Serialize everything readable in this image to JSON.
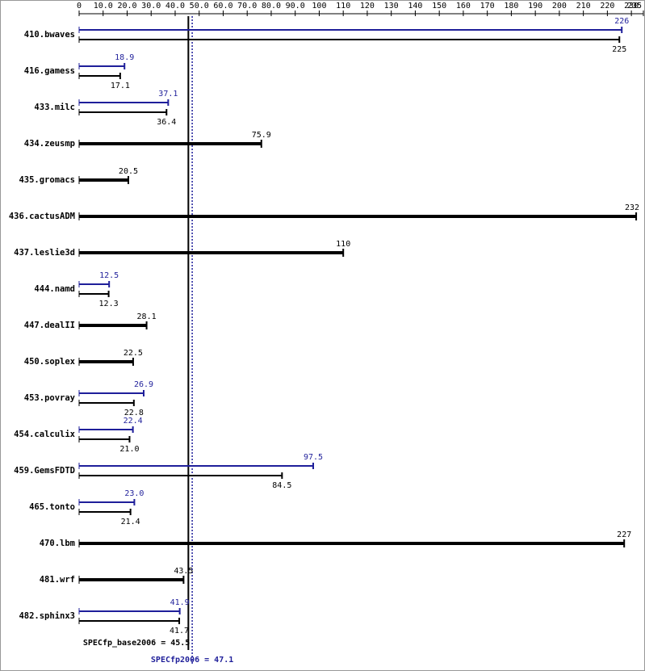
{
  "chart_data": {
    "type": "bar",
    "orientation": "horizontal",
    "categories": [
      "410.bwaves",
      "416.gamess",
      "433.milc",
      "434.zeusmp",
      "435.gromacs",
      "436.cactusADM",
      "437.leslie3d",
      "444.namd",
      "447.dealII",
      "450.soplex",
      "453.povray",
      "454.calculix",
      "459.GemsFDTD",
      "465.tonto",
      "470.lbm",
      "481.wrf",
      "482.sphinx3"
    ],
    "series": [
      {
        "color": "#1f1f9a",
        "values": [
          226,
          18.9,
          37.1,
          null,
          null,
          null,
          null,
          12.5,
          null,
          null,
          26.9,
          22.4,
          97.5,
          23.0,
          null,
          null,
          41.9
        ],
        "value_labels": [
          null,
          null,
          null,
          null,
          null,
          null,
          null,
          null,
          null,
          null,
          null,
          null,
          null,
          "23.0",
          null,
          null,
          null
        ]
      },
      {
        "color": "#000000",
        "values": [
          225,
          17.1,
          36.4,
          75.9,
          20.5,
          232,
          110,
          12.3,
          28.1,
          22.5,
          22.8,
          21.0,
          84.5,
          21.4,
          227,
          43.5,
          41.7
        ],
        "value_labels": [
          null,
          null,
          null,
          null,
          null,
          null,
          null,
          null,
          null,
          null,
          null,
          "21.0",
          null,
          null,
          null,
          null,
          null
        ]
      }
    ],
    "xlim": [
      0,
      235
    ],
    "xticks": [
      0,
      {
        "value": 10,
        "label": "10.0"
      },
      {
        "value": 20,
        "label": "20.0"
      },
      {
        "value": 30,
        "label": "30.0"
      },
      {
        "value": 40,
        "label": "40.0"
      },
      {
        "value": 50,
        "label": "50.0"
      },
      {
        "value": 60,
        "label": "60.0"
      },
      {
        "value": 70,
        "label": "70.0"
      },
      {
        "value": 80,
        "label": "80.0"
      },
      {
        "value": 90,
        "label": "90.0"
      },
      100,
      110,
      120,
      130,
      140,
      150,
      160,
      170,
      180,
      190,
      200,
      210,
      220,
      230,
      235
    ],
    "reference_lines": [
      {
        "label": "SPECfp_base2006 = 45.5",
        "value": 45.5,
        "color": "#000000",
        "style": "solid"
      },
      {
        "label": "SPECfp2006 = 47.1",
        "value": 47.1,
        "color": "#1f1f9a",
        "style": "dotted"
      }
    ]
  }
}
